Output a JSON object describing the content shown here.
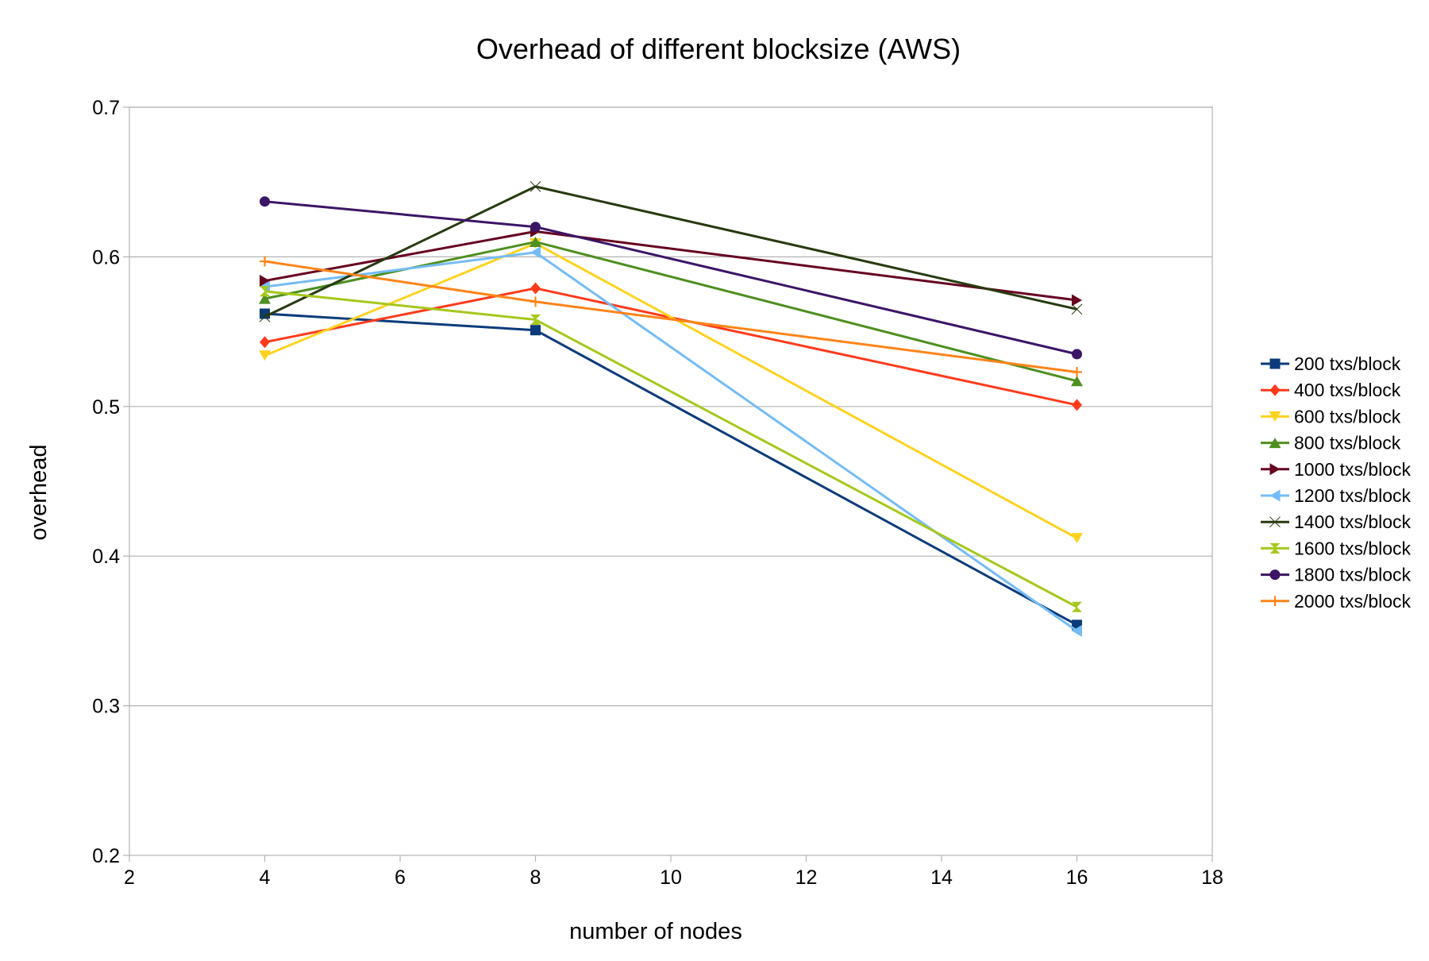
{
  "chart_data": {
    "type": "line",
    "title": "Overhead of different blocksize (AWS)",
    "xlabel": "number of nodes",
    "ylabel": "overhead",
    "xlim": [
      2,
      18
    ],
    "ylim": [
      0.2,
      0.7
    ],
    "xticks": [
      2,
      4,
      6,
      8,
      10,
      12,
      14,
      16,
      18
    ],
    "yticks": [
      0.2,
      0.3,
      0.4,
      0.5,
      0.6,
      0.7
    ],
    "xtick_labels": [
      "2",
      "4",
      "6",
      "8",
      "10",
      "12",
      "14",
      "16",
      "18"
    ],
    "ytick_labels": [
      "0.2",
      "0.3",
      "0.4",
      "0.5",
      "0.6",
      "0.7"
    ],
    "grid": "horizontal",
    "legend_position": "right",
    "x": [
      4,
      8,
      16
    ],
    "series": [
      {
        "name": "200 txs/block",
        "values": [
          0.562,
          0.551,
          0.354
        ],
        "color": "#0b3b7a",
        "marker": "square"
      },
      {
        "name": "400 txs/block",
        "values": [
          0.543,
          0.579,
          0.501
        ],
        "color": "#ff3b1c",
        "marker": "diamond"
      },
      {
        "name": "600 txs/block",
        "values": [
          0.534,
          0.609,
          0.412
        ],
        "color": "#ffd21f",
        "marker": "triangle-down"
      },
      {
        "name": "800 txs/block",
        "values": [
          0.572,
          0.61,
          0.517
        ],
        "color": "#4e8f1f",
        "marker": "triangle-up"
      },
      {
        "name": "1000 txs/block",
        "values": [
          0.584,
          0.617,
          0.571
        ],
        "color": "#660020",
        "marker": "triangle-right"
      },
      {
        "name": "1200 txs/block",
        "values": [
          0.58,
          0.603,
          0.35
        ],
        "color": "#74bcf5",
        "marker": "triangle-left"
      },
      {
        "name": "1400 txs/block",
        "values": [
          0.56,
          0.647,
          0.565
        ],
        "color": "#283a10",
        "marker": "bowtie"
      },
      {
        "name": "1600 txs/block",
        "values": [
          0.577,
          0.558,
          0.366
        ],
        "color": "#a5c81c",
        "marker": "hourglass"
      },
      {
        "name": "1800 txs/block",
        "values": [
          0.637,
          0.62,
          0.535
        ],
        "color": "#3b1566",
        "marker": "circle"
      },
      {
        "name": "2000 txs/block",
        "values": [
          0.597,
          0.57,
          0.523
        ],
        "color": "#ff8419",
        "marker": "plus"
      }
    ]
  }
}
